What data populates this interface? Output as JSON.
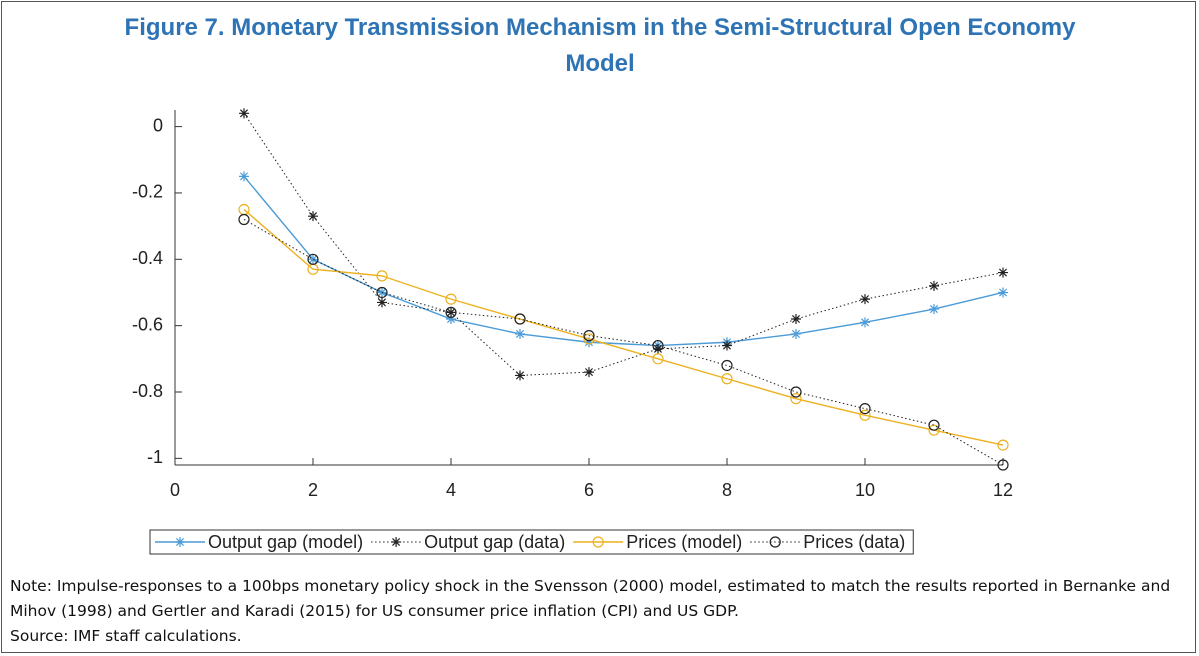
{
  "chart_data": {
    "type": "line",
    "title": "Figure 7. Monetary Transmission Mechanism in the Semi-Structural Open Economy Model",
    "x": [
      1,
      2,
      3,
      4,
      5,
      6,
      7,
      8,
      9,
      10,
      11,
      12
    ],
    "series": [
      {
        "name": "Output gap (model)",
        "color": "#4a9bd8",
        "line": "solid",
        "marker": "star",
        "values": [
          -0.15,
          -0.4,
          -0.5,
          -0.58,
          -0.625,
          -0.65,
          -0.66,
          -0.65,
          -0.625,
          -0.59,
          -0.55,
          -0.5
        ]
      },
      {
        "name": "Output gap (data)",
        "color": "#222222",
        "line": "dotted",
        "marker": "star",
        "values": [
          0.04,
          -0.27,
          -0.53,
          -0.56,
          -0.75,
          -0.74,
          -0.67,
          -0.66,
          -0.58,
          -0.52,
          -0.48,
          -0.44
        ]
      },
      {
        "name": "Prices (model)",
        "color": "#edb120",
        "line": "solid",
        "marker": "circle",
        "values": [
          -0.25,
          -0.43,
          -0.45,
          -0.52,
          -0.58,
          -0.64,
          -0.7,
          -0.76,
          -0.82,
          -0.87,
          -0.915,
          -0.96
        ]
      },
      {
        "name": "Prices (data)",
        "color": "#222222",
        "line": "dotted",
        "marker": "circle",
        "values": [
          -0.28,
          -0.4,
          -0.5,
          -0.56,
          -0.58,
          -0.63,
          -0.66,
          -0.72,
          -0.8,
          -0.85,
          -0.9,
          -1.02
        ]
      }
    ],
    "xlim": [
      0,
      12
    ],
    "xticks": [
      0,
      2,
      4,
      6,
      8,
      10,
      12
    ],
    "ylim": [
      -1.02,
      0.05
    ],
    "yticks": [
      0,
      -0.2,
      -0.4,
      -0.6,
      -0.8,
      -1
    ],
    "legend": "bottom",
    "note": "Note: Impulse-responses to a 100bps monetary policy shock in the Svensson (2000) model, estimated to match the results reported in Bernanke and Mihov (1998) and Gertler and Karadi (2015) for US consumer price inflation (CPI) and US GDP.",
    "source": "Source: IMF staff calculations."
  }
}
